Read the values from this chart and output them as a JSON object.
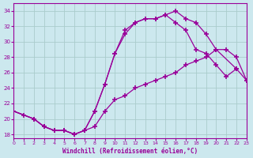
{
  "xlabel": "Windchill (Refroidissement éolien,°C)",
  "bg_color": "#cce8ee",
  "line_color": "#990099",
  "grid_color": "#aacccc",
  "xlim": [
    0,
    23
  ],
  "ylim": [
    17.5,
    35
  ],
  "xticks": [
    0,
    1,
    2,
    3,
    4,
    5,
    6,
    7,
    8,
    9,
    10,
    11,
    12,
    13,
    14,
    15,
    16,
    17,
    18,
    19,
    20,
    21,
    22,
    23
  ],
  "yticks": [
    18,
    20,
    22,
    24,
    26,
    28,
    30,
    32,
    34
  ],
  "line1_x": [
    0,
    1,
    2,
    3,
    4,
    5,
    6,
    7,
    8,
    9,
    10,
    11,
    12,
    13,
    14,
    15,
    16,
    17,
    18,
    19,
    20,
    22,
    23
  ],
  "line1_y": [
    21,
    20.5,
    20,
    19,
    18.5,
    18.5,
    18,
    18.5,
    21,
    24.5,
    28.5,
    31.5,
    32.5,
    33,
    33,
    33.5,
    34,
    33,
    32.5,
    31,
    29,
    26.5,
    25
  ],
  "line2_x": [
    0,
    2,
    3,
    4,
    5,
    6,
    7,
    8,
    9,
    10,
    11,
    12,
    13,
    14,
    15,
    16,
    17,
    18,
    19,
    20,
    21,
    22
  ],
  "line2_y": [
    21,
    20,
    19,
    18.5,
    18.5,
    18,
    18.5,
    21,
    24.5,
    28.5,
    31,
    32.5,
    33,
    33,
    33.5,
    32.5,
    31.5,
    29,
    28.5,
    27,
    25.5,
    26.5
  ],
  "line3_x": [
    0,
    2,
    3,
    4,
    5,
    6,
    7,
    8,
    9,
    10,
    11,
    12,
    13,
    14,
    15,
    16,
    17,
    18,
    19,
    20,
    21,
    22,
    23
  ],
  "line3_y": [
    21,
    20,
    19,
    18.5,
    18.5,
    18,
    18.5,
    19,
    21,
    22.5,
    23,
    24,
    24.5,
    25,
    25.5,
    26,
    27,
    27.5,
    28,
    29,
    29,
    28,
    25
  ]
}
